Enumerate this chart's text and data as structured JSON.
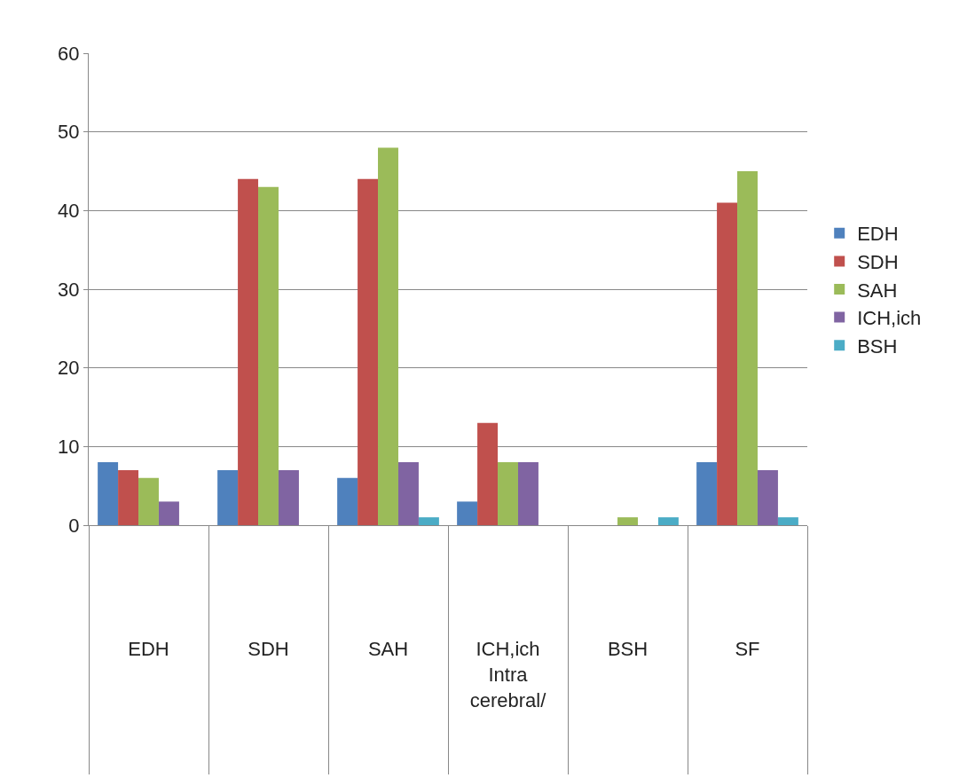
{
  "chart_data": {
    "type": "bar",
    "categories": [
      "EDH",
      "SDH",
      "SAH",
      "ICH,ich Intra cerebral/",
      "BSH",
      "SF"
    ],
    "series": [
      {
        "name": "EDH",
        "color": "#4f81bd",
        "values": [
          8,
          7,
          6,
          3,
          0,
          8
        ]
      },
      {
        "name": "SDH",
        "color": "#c0504d",
        "values": [
          7,
          44,
          44,
          13,
          0,
          41
        ]
      },
      {
        "name": "SAH",
        "color": "#9bbb59",
        "values": [
          6,
          43,
          48,
          8,
          1,
          45
        ]
      },
      {
        "name": "ICH,ich",
        "color": "#8064a2",
        "values": [
          3,
          7,
          8,
          8,
          0,
          7
        ]
      },
      {
        "name": "BSH",
        "color": "#4bacc6",
        "values": [
          0,
          0,
          1,
          0,
          1,
          1
        ]
      }
    ],
    "ylim": [
      0,
      60
    ],
    "yticks": [
      0,
      10,
      20,
      30,
      40,
      50,
      60
    ],
    "grid": "y",
    "legend": "right"
  }
}
